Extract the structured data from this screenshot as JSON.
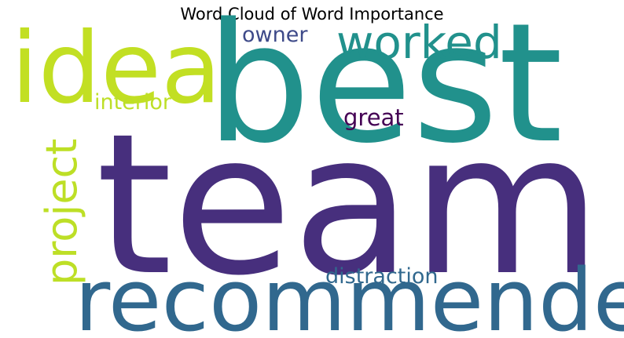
{
  "title": "Word Cloud of Word Importance",
  "chart_data": {
    "type": "word_cloud",
    "title": "Word Cloud of Word Importance",
    "words": [
      {
        "text": "team",
        "weight": 1.0,
        "color": "#472f7d"
      },
      {
        "text": "best",
        "weight": 0.85,
        "color": "#21918c"
      },
      {
        "text": "recommended",
        "weight": 0.45,
        "color": "#31688e"
      },
      {
        "text": "idea",
        "weight": 0.42,
        "color": "#c2df23"
      },
      {
        "text": "worked",
        "weight": 0.23,
        "color": "#21918c"
      },
      {
        "text": "project",
        "weight": 0.22,
        "color": "#bddf26"
      },
      {
        "text": "interior",
        "weight": 0.1,
        "color": "#bddf26"
      },
      {
        "text": "great",
        "weight": 0.1,
        "color": "#440154"
      },
      {
        "text": "distraction",
        "weight": 0.1,
        "color": "#31688e"
      },
      {
        "text": "owner",
        "weight": 0.1,
        "color": "#3e4a89"
      }
    ]
  }
}
